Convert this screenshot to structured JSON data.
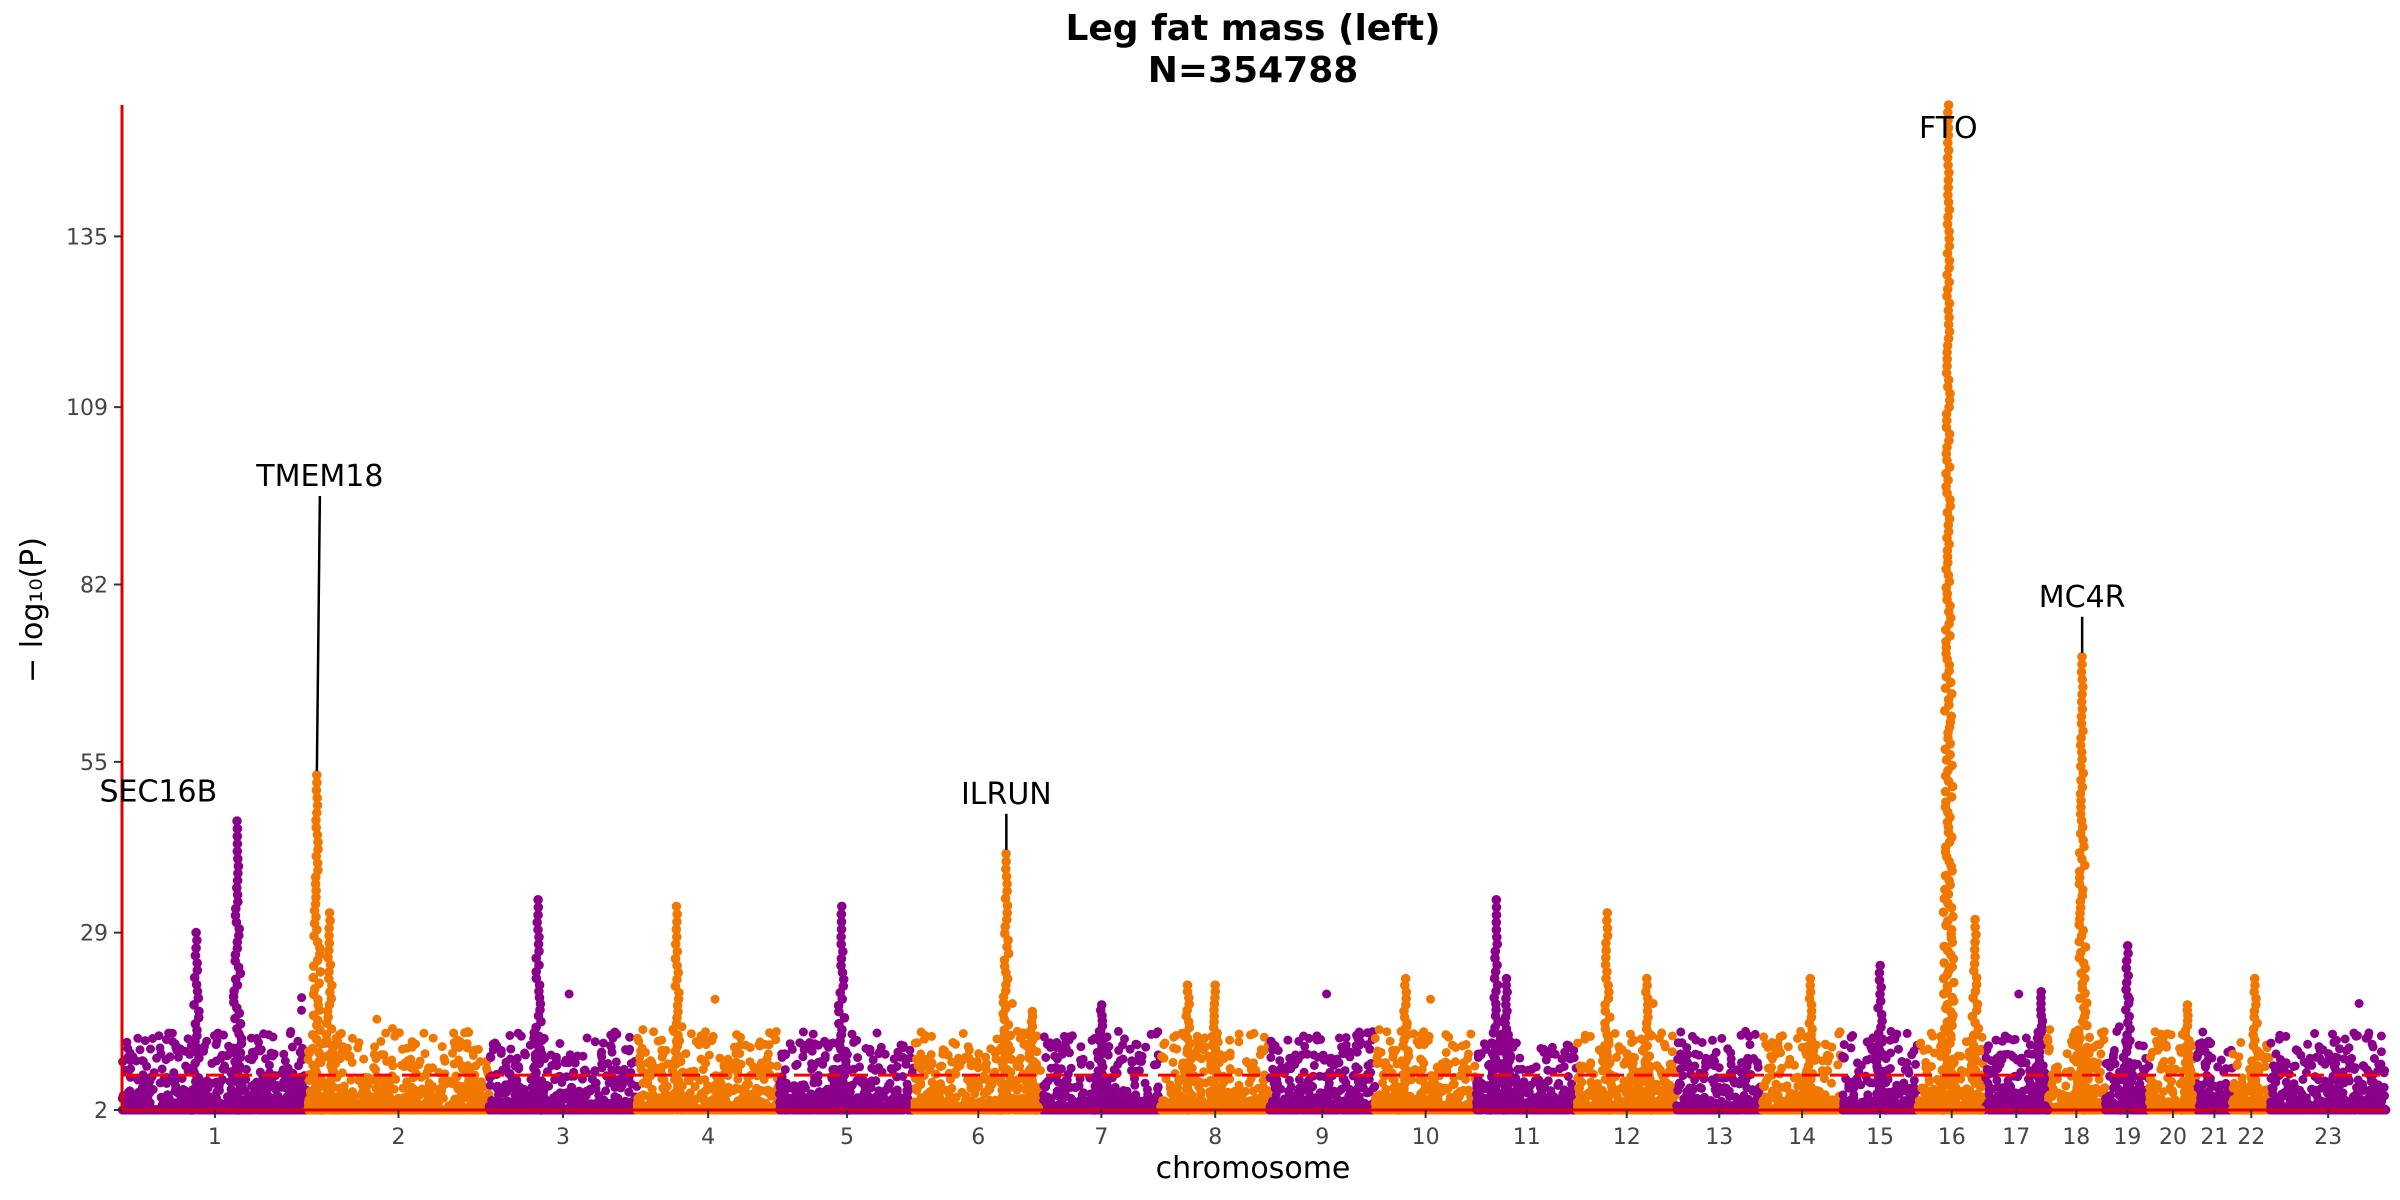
{
  "chart_data": {
    "type": "scatter",
    "subtype": "manhattan",
    "title": "Leg fat mass (left)",
    "subtitle": "N=354788",
    "xlabel": "chromosome",
    "ylabel": "− log₁₀(P)",
    "ylim": [
      2,
      155
    ],
    "yticks": [
      2,
      29,
      55,
      82,
      109,
      135
    ],
    "significance_threshold": 7.3,
    "colors": {
      "odd": "#8B008B",
      "even": "#F07800",
      "axis": "#DD0000",
      "threshold": "#FF0000"
    },
    "grid": false,
    "legend": "none",
    "chromosomes": [
      {
        "label": "1"
      },
      {
        "label": "2"
      },
      {
        "label": "3"
      },
      {
        "label": "4"
      },
      {
        "label": "5"
      },
      {
        "label": "6"
      },
      {
        "label": "7"
      },
      {
        "label": "8"
      },
      {
        "label": "9"
      },
      {
        "label": "10"
      },
      {
        "label": "11"
      },
      {
        "label": "12"
      },
      {
        "label": "13"
      },
      {
        "label": "14"
      },
      {
        "label": "15"
      },
      {
        "label": "16"
      },
      {
        "label": "17"
      },
      {
        "label": "18"
      },
      {
        "label": "19"
      },
      {
        "label": "20"
      },
      {
        "label": "21"
      },
      {
        "label": "22"
      },
      {
        "label": "23"
      }
    ],
    "peaks": [
      {
        "chr": "1",
        "peak": 29
      },
      {
        "chr": "1",
        "peak": 46
      },
      {
        "chr": "2",
        "peak": 53,
        "gene": "TMEM18"
      },
      {
        "chr": "2",
        "peak": 32
      },
      {
        "chr": "3",
        "peak": 34
      },
      {
        "chr": "4",
        "peak": 33
      },
      {
        "chr": "5",
        "peak": 33
      },
      {
        "chr": "6",
        "peak": 41,
        "gene": "ILRUN"
      },
      {
        "chr": "6",
        "peak": 17
      },
      {
        "chr": "7",
        "peak": 18
      },
      {
        "chr": "8",
        "peak": 21
      },
      {
        "chr": "8",
        "peak": 21
      },
      {
        "chr": "10",
        "peak": 22
      },
      {
        "chr": "11",
        "peak": 34
      },
      {
        "chr": "11",
        "peak": 22
      },
      {
        "chr": "12",
        "peak": 32
      },
      {
        "chr": "12",
        "peak": 22
      },
      {
        "chr": "14",
        "peak": 22
      },
      {
        "chr": "15",
        "peak": 24
      },
      {
        "chr": "16",
        "peak": 155,
        "gene": "FTO"
      },
      {
        "chr": "16",
        "peak": 31
      },
      {
        "chr": "17",
        "peak": 20
      },
      {
        "chr": "18",
        "peak": 71,
        "gene": "MC4R"
      },
      {
        "chr": "19",
        "peak": 27
      },
      {
        "chr": "20",
        "peak": 18
      },
      {
        "chr": "22",
        "peak": 22
      }
    ],
    "annotations": [
      {
        "gene": "SEC16B",
        "chr": "1"
      },
      {
        "gene": "TMEM18",
        "chr": "2"
      },
      {
        "gene": "ILRUN",
        "chr": "6"
      },
      {
        "gene": "FTO",
        "chr": "16"
      },
      {
        "gene": "MC4R",
        "chr": "18"
      }
    ]
  }
}
